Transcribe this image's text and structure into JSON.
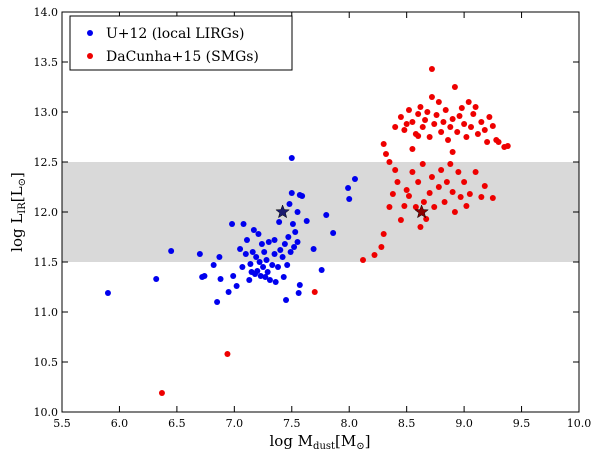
{
  "chart_data": {
    "type": "scatter",
    "xlim": [
      5.5,
      10.0
    ],
    "ylim": [
      10.0,
      14.0
    ],
    "xticks": [
      "5.5",
      "6.0",
      "6.5",
      "7.0",
      "7.5",
      "8.0",
      "8.5",
      "9.0",
      "9.5",
      "10.0"
    ],
    "yticks": [
      "10.0",
      "10.5",
      "11.0",
      "11.5",
      "12.0",
      "12.5",
      "13.0",
      "13.5",
      "14.0"
    ],
    "xlabel": {
      "base": "log M",
      "sub": "dust",
      "bracket": "[M",
      "sun": "⊙",
      "close": "]"
    },
    "ylabel": {
      "base": "log L",
      "sub": "IR",
      "bracket": "[L",
      "sun": "⊙",
      "close": "]"
    },
    "band": {
      "ymin": 11.5,
      "ymax": 12.5,
      "color": "#d9d9d9"
    },
    "legend_position": "top-left",
    "grid": false,
    "series": [
      {
        "name": "U+12 (local LIRGs)",
        "color": "#0000ee",
        "star": [
          7.42,
          12.0
        ],
        "star_color": "#1a1a6e",
        "points": [
          [
            5.9,
            11.19
          ],
          [
            6.32,
            11.33
          ],
          [
            6.45,
            11.61
          ],
          [
            6.7,
            11.58
          ],
          [
            6.72,
            11.35
          ],
          [
            6.74,
            11.36
          ],
          [
            6.82,
            11.47
          ],
          [
            6.85,
            11.1
          ],
          [
            6.87,
            11.55
          ],
          [
            6.88,
            11.33
          ],
          [
            6.95,
            11.2
          ],
          [
            6.98,
            11.88
          ],
          [
            6.99,
            11.36
          ],
          [
            7.02,
            11.26
          ],
          [
            7.05,
            11.63
          ],
          [
            7.07,
            11.45
          ],
          [
            7.08,
            11.88
          ],
          [
            7.1,
            11.58
          ],
          [
            7.11,
            11.72
          ],
          [
            7.13,
            11.32
          ],
          [
            7.14,
            11.48
          ],
          [
            7.15,
            11.4
          ],
          [
            7.16,
            11.6
          ],
          [
            7.17,
            11.82
          ],
          [
            7.18,
            11.38
          ],
          [
            7.19,
            11.55
          ],
          [
            7.2,
            11.41
          ],
          [
            7.21,
            11.78
          ],
          [
            7.22,
            11.5
          ],
          [
            7.23,
            11.36
          ],
          [
            7.24,
            11.68
          ],
          [
            7.25,
            11.45
          ],
          [
            7.26,
            11.6
          ],
          [
            7.27,
            11.35
          ],
          [
            7.28,
            11.52
          ],
          [
            7.29,
            11.4
          ],
          [
            7.3,
            11.7
          ],
          [
            7.31,
            11.32
          ],
          [
            7.33,
            11.47
          ],
          [
            7.35,
            11.58
          ],
          [
            7.35,
            11.72
          ],
          [
            7.36,
            11.3
          ],
          [
            7.38,
            11.45
          ],
          [
            7.39,
            11.9
          ],
          [
            7.4,
            11.62
          ],
          [
            7.42,
            11.55
          ],
          [
            7.43,
            11.35
          ],
          [
            7.44,
            11.68
          ],
          [
            7.45,
            11.12
          ],
          [
            7.46,
            11.47
          ],
          [
            7.47,
            11.75
          ],
          [
            7.48,
            12.08
          ],
          [
            7.49,
            11.6
          ],
          [
            7.5,
            12.19
          ],
          [
            7.5,
            12.54
          ],
          [
            7.51,
            11.88
          ],
          [
            7.52,
            11.65
          ],
          [
            7.53,
            11.8
          ],
          [
            7.55,
            11.7
          ],
          [
            7.55,
            12.0
          ],
          [
            7.56,
            11.19
          ],
          [
            7.57,
            12.17
          ],
          [
            7.57,
            11.27
          ],
          [
            7.59,
            12.16
          ],
          [
            7.63,
            11.91
          ],
          [
            7.69,
            11.63
          ],
          [
            7.76,
            11.42
          ],
          [
            7.8,
            11.97
          ],
          [
            7.86,
            11.79
          ],
          [
            7.99,
            12.24
          ],
          [
            8.0,
            12.13
          ],
          [
            8.05,
            12.33
          ]
        ]
      },
      {
        "name": "DaCunha+15 (SMGs)",
        "color": "#ee0000",
        "star": [
          8.63,
          12.0
        ],
        "star_color": "#8b0000",
        "points": [
          [
            6.37,
            10.19
          ],
          [
            6.94,
            10.58
          ],
          [
            7.7,
            11.2
          ],
          [
            8.12,
            11.52
          ],
          [
            8.22,
            11.57
          ],
          [
            8.28,
            11.65
          ],
          [
            8.3,
            11.78
          ],
          [
            8.35,
            12.05
          ],
          [
            8.38,
            12.18
          ],
          [
            8.4,
            12.42
          ],
          [
            8.42,
            12.3
          ],
          [
            8.45,
            11.92
          ],
          [
            8.48,
            12.06
          ],
          [
            8.5,
            12.22
          ],
          [
            8.52,
            12.16
          ],
          [
            8.55,
            12.4
          ],
          [
            8.58,
            12.05
          ],
          [
            8.6,
            12.3
          ],
          [
            8.62,
            11.85
          ],
          [
            8.64,
            12.48
          ],
          [
            8.65,
            12.1
          ],
          [
            8.67,
            11.93
          ],
          [
            8.7,
            12.19
          ],
          [
            8.72,
            12.35
          ],
          [
            8.74,
            12.05
          ],
          [
            8.78,
            12.25
          ],
          [
            8.8,
            12.42
          ],
          [
            8.83,
            12.1
          ],
          [
            8.85,
            12.3
          ],
          [
            8.88,
            12.48
          ],
          [
            8.9,
            12.2
          ],
          [
            8.92,
            12.0
          ],
          [
            8.95,
            12.4
          ],
          [
            8.97,
            12.15
          ],
          [
            9.0,
            12.3
          ],
          [
            9.02,
            12.06
          ],
          [
            9.05,
            12.18
          ],
          [
            9.1,
            12.4
          ],
          [
            9.15,
            12.15
          ],
          [
            9.18,
            12.26
          ],
          [
            9.25,
            12.14
          ],
          [
            8.3,
            12.68
          ],
          [
            8.32,
            12.58
          ],
          [
            8.35,
            12.5
          ],
          [
            8.55,
            12.63
          ],
          [
            8.6,
            12.76
          ],
          [
            8.9,
            12.6
          ],
          [
            9.3,
            12.7
          ],
          [
            9.35,
            12.65
          ],
          [
            9.38,
            12.66
          ],
          [
            8.4,
            12.85
          ],
          [
            8.45,
            12.95
          ],
          [
            8.48,
            12.82
          ],
          [
            8.5,
            12.88
          ],
          [
            8.52,
            13.02
          ],
          [
            8.55,
            12.9
          ],
          [
            8.58,
            12.78
          ],
          [
            8.6,
            12.98
          ],
          [
            8.62,
            13.05
          ],
          [
            8.64,
            12.85
          ],
          [
            8.66,
            12.92
          ],
          [
            8.68,
            13.0
          ],
          [
            8.7,
            12.75
          ],
          [
            8.72,
            13.15
          ],
          [
            8.74,
            12.88
          ],
          [
            8.76,
            12.97
          ],
          [
            8.78,
            13.1
          ],
          [
            8.8,
            12.8
          ],
          [
            8.82,
            12.9
          ],
          [
            8.84,
            13.02
          ],
          [
            8.86,
            12.72
          ],
          [
            8.88,
            12.85
          ],
          [
            8.9,
            12.93
          ],
          [
            8.92,
            13.25
          ],
          [
            8.94,
            12.8
          ],
          [
            8.96,
            12.96
          ],
          [
            8.98,
            13.04
          ],
          [
            9.0,
            12.88
          ],
          [
            9.02,
            12.75
          ],
          [
            9.04,
            13.1
          ],
          [
            9.06,
            12.85
          ],
          [
            9.08,
            12.98
          ],
          [
            9.1,
            13.05
          ],
          [
            9.12,
            12.78
          ],
          [
            9.15,
            12.9
          ],
          [
            9.18,
            12.82
          ],
          [
            9.2,
            12.7
          ],
          [
            9.22,
            12.95
          ],
          [
            9.25,
            12.86
          ],
          [
            9.28,
            12.72
          ],
          [
            8.72,
            13.43
          ]
        ]
      }
    ]
  }
}
